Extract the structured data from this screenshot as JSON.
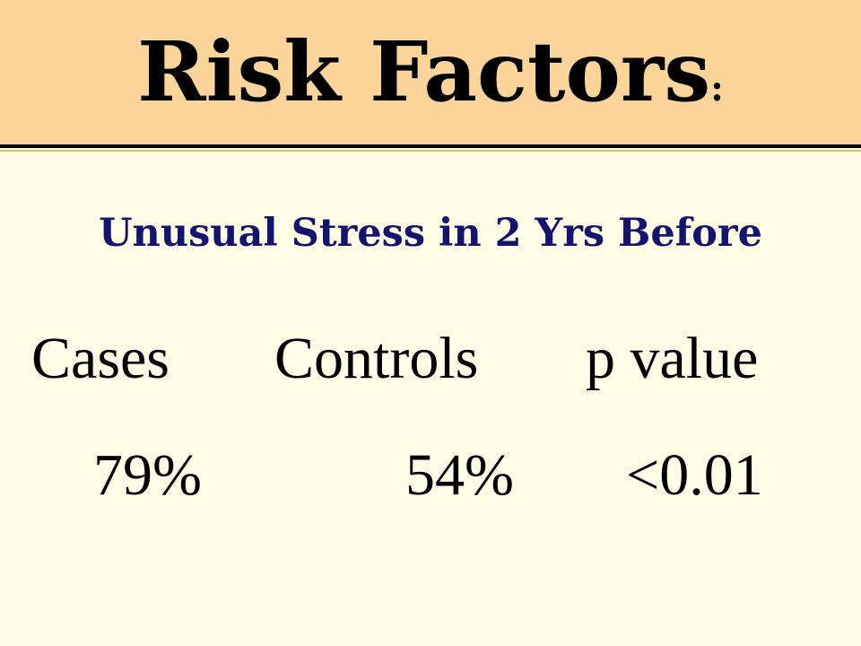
{
  "slide": {
    "title": "Risk Factors",
    "title_colon": ":",
    "subtitle": "Unusual Stress in 2 Yrs Before",
    "table": {
      "headers": [
        "Cases",
        "Controls",
        "p value"
      ],
      "values": [
        "79%",
        "54%",
        "<0.01"
      ]
    }
  },
  "colors": {
    "title_band": "#fbd49a",
    "background": "#fffde6",
    "subtitle": "#14146e",
    "text": "#000000"
  }
}
